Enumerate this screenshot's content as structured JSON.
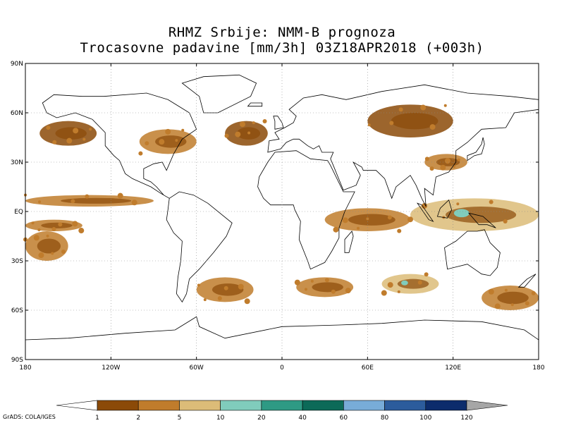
{
  "header": {
    "title_line1": "RHMZ Srbije: NMM-B prognoza",
    "title_line2": "Trocasovne padavine [mm/3h] 03Z18APR2018 (+003h)"
  },
  "map": {
    "projection": "cylindrical-equidistant",
    "lon_range": [
      -180,
      180
    ],
    "lat_range": [
      -90,
      90
    ],
    "grid_lines": "dotted",
    "land_outline_color": "#000000",
    "lat_ticks": [
      {
        "lat": 90,
        "label": "90N"
      },
      {
        "lat": 60,
        "label": "60N"
      },
      {
        "lat": 30,
        "label": "30N"
      },
      {
        "lat": 0,
        "label": "EQ"
      },
      {
        "lat": -30,
        "label": "30S"
      },
      {
        "lat": -60,
        "label": "60S"
      },
      {
        "lat": -90,
        "label": "90S"
      }
    ],
    "lon_ticks": [
      {
        "lon": -180,
        "label": "180"
      },
      {
        "lon": -120,
        "label": "120W"
      },
      {
        "lon": -60,
        "label": "60W"
      },
      {
        "lon": 0,
        "label": "0"
      },
      {
        "lon": 60,
        "label": "60E"
      },
      {
        "lon": 120,
        "label": "120E"
      },
      {
        "lon": 180,
        "label": "180"
      }
    ],
    "precip_bands": [
      {
        "name": "itcz-pacific-north",
        "lon": [
          -180,
          -90
        ],
        "lat": [
          3,
          10
        ],
        "level": 2
      },
      {
        "name": "itcz-pacific-south",
        "lon": [
          -180,
          -140
        ],
        "lat": [
          -12,
          -5
        ],
        "level": 2
      },
      {
        "name": "indonesia",
        "lon": [
          90,
          180
        ],
        "lat": [
          -12,
          8
        ],
        "level": 3
      },
      {
        "name": "east-africa-indian-ocean",
        "lon": [
          30,
          90
        ],
        "lat": [
          -12,
          2
        ],
        "level": 2
      },
      {
        "name": "south-pacific-convergence",
        "lon": [
          -180,
          -150
        ],
        "lat": [
          -30,
          -12
        ],
        "level": 2
      },
      {
        "name": "north-america-front",
        "lon": [
          -100,
          -60
        ],
        "lat": [
          35,
          50
        ],
        "level": 2
      },
      {
        "name": "north-pacific-storm",
        "lon": [
          -170,
          -130
        ],
        "lat": [
          40,
          55
        ],
        "level": 1
      },
      {
        "name": "siberia",
        "lon": [
          60,
          120
        ],
        "lat": [
          45,
          65
        ],
        "level": 1
      },
      {
        "name": "southern-ocean-1",
        "lon": [
          -60,
          -20
        ],
        "lat": [
          -55,
          -40
        ],
        "level": 2
      },
      {
        "name": "southern-ocean-2",
        "lon": [
          10,
          50
        ],
        "lat": [
          -52,
          -40
        ],
        "level": 2
      },
      {
        "name": "southern-ocean-3",
        "lon": [
          70,
          110
        ],
        "lat": [
          -50,
          -38
        ],
        "level": 3
      },
      {
        "name": "southern-ocean-4",
        "lon": [
          140,
          180
        ],
        "lat": [
          -60,
          -45
        ],
        "level": 2
      },
      {
        "name": "atlantic-midlat",
        "lon": [
          -40,
          -10
        ],
        "lat": [
          40,
          55
        ],
        "level": 1
      },
      {
        "name": "china",
        "lon": [
          100,
          130
        ],
        "lat": [
          25,
          35
        ],
        "level": 2
      }
    ]
  },
  "colorbar": {
    "colors": [
      "#8b4a08",
      "#c07c2c",
      "#dcbc78",
      "#80ccbc",
      "#2e9a84",
      "#0c6a58",
      "#78acd8",
      "#2c5c9c",
      "#0c2c6c"
    ],
    "under_color": "#ffffff",
    "over_color": "#a6a6a6",
    "labels": [
      "1",
      "2",
      "5",
      "10",
      "20",
      "40",
      "60",
      "80",
      "100",
      "120"
    ]
  },
  "footer": {
    "credit": "GrADS: COLA/IGES"
  }
}
